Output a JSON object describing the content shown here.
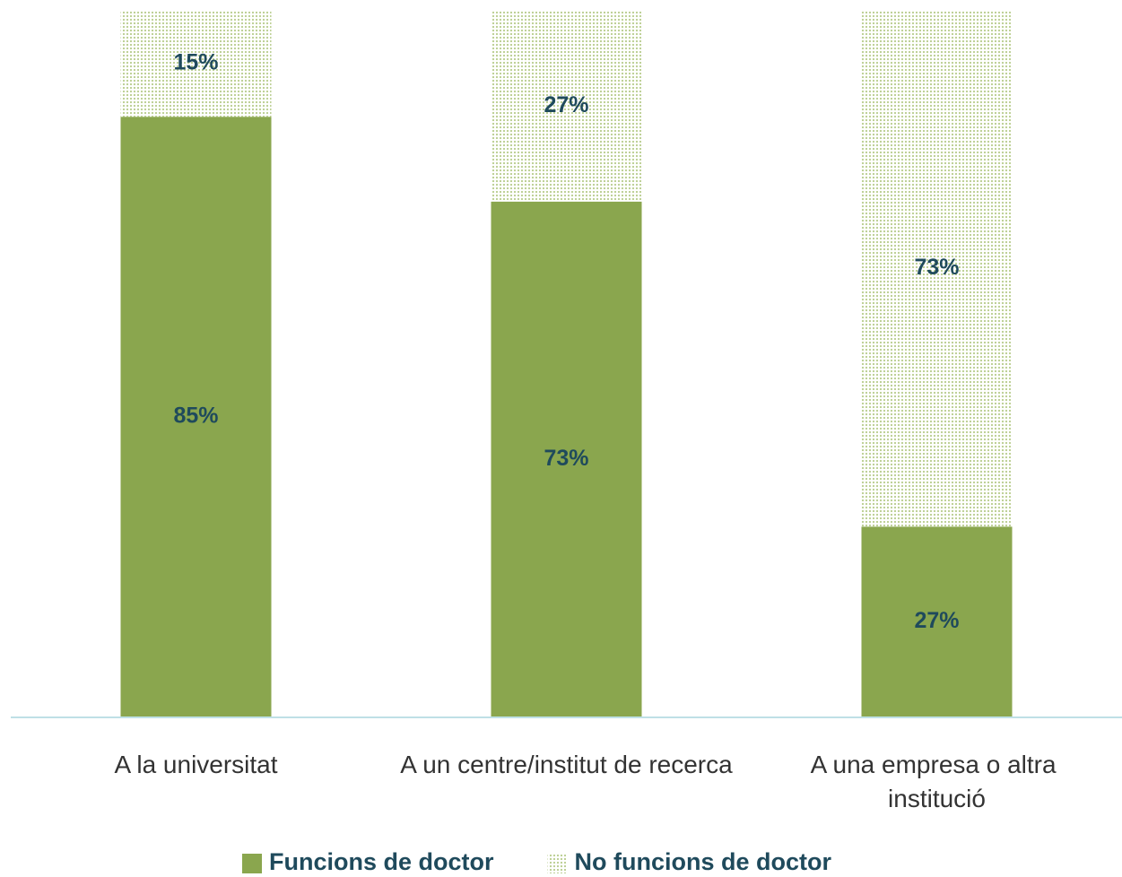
{
  "chart_data": {
    "type": "stacked_bar",
    "categories": [
      "A la universitat",
      "A un centre/institut de recerca",
      "A una empresa o altra institució"
    ],
    "series": [
      {
        "name": "Funcions de doctor",
        "color": "#8aa64e",
        "values": [
          85,
          73,
          27
        ],
        "value_labels": [
          "85%",
          "73%",
          "27%"
        ]
      },
      {
        "name": "No funcions de doctor",
        "color": "#b8cc8c",
        "pattern": "dots",
        "values": [
          15,
          27,
          73
        ],
        "value_labels": [
          "15%",
          "27%",
          "73%"
        ]
      }
    ],
    "ylim": [
      0,
      100
    ],
    "legend": "bottom"
  }
}
